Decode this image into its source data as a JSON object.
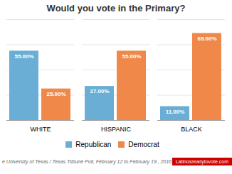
{
  "chart_data": {
    "type": "bar",
    "title": "Would you vote in the Primary?",
    "categories": [
      "WHITE",
      "HISPANIC",
      "BLACK"
    ],
    "series": [
      {
        "name": "Republican",
        "color": "#6aaed6",
        "values": [
          55.0,
          27.0,
          11.0
        ],
        "value_labels": [
          "55.00%",
          "27.00%",
          "11.00%"
        ]
      },
      {
        "name": "Democrat",
        "color": "#f0884a",
        "values": [
          25.0,
          55.0,
          69.0
        ],
        "value_labels": [
          "25.00%",
          "55.00%",
          "69.00%"
        ]
      }
    ],
    "ylim": [
      0,
      80
    ],
    "yticks": [
      20,
      40,
      60,
      80
    ],
    "grid": true,
    "data_labels": true,
    "tick_labels": "x",
    "legend": "bottom",
    "annotations": [
      {
        "text": "e University of Texas / Texas Tribune Poll,  February 12  to February 19 ,  2016"
      },
      {
        "text": "Latinosreadytovote.com",
        "color": "#cc0000"
      }
    ]
  }
}
